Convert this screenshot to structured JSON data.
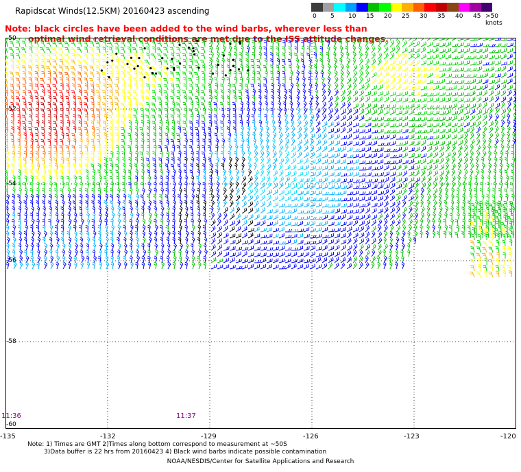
{
  "title": "Rapidscat Winds(12.5KM) 20160423 ascending",
  "note_line1": "Note: black circles have been added to the wind barbs, wherever less than",
  "note_line2": "optimal wind retrieval conditions are met due to the ISS attitude changes.",
  "scale": {
    "unit_label": ">50 knots",
    "ticks": [
      "0",
      "5",
      "10",
      "15",
      "20",
      "25",
      "30",
      "35",
      "40",
      "45"
    ],
    "colors": [
      "#3c3c3c",
      "#a0a0a0",
      "#00ffff",
      "#00a0ff",
      "#0000ff",
      "#00c000",
      "#00ff00",
      "#ffff00",
      "#ffb000",
      "#ff6000",
      "#ff0000",
      "#c00000",
      "#8b4513",
      "#ff00ff",
      "#a000a0",
      "#400070"
    ]
  },
  "latitudes": [
    "-50",
    "-52",
    "-54",
    "-56",
    "-58",
    "-60"
  ],
  "longitudes": [
    "-135",
    "-132",
    "-129",
    "-126",
    "-123",
    "-120"
  ],
  "times": [
    "11:36",
    "11:37"
  ],
  "footnote_line1": "Note: 1) Times are GMT 2)Times along bottom correspond to measurement at ~50S",
  "footnote_line2": "3)Data buffer is 22 hrs from 20160423 4) Black wind barbs indicate possible contamination",
  "credit": "NOAA/NESDIS/Center for Satellite Applications and Research"
}
